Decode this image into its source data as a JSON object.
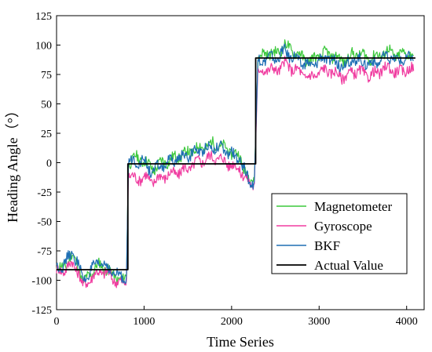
{
  "chart_data": {
    "type": "line",
    "xlabel": "Time Series",
    "ylabel": "Heading Angle（°）",
    "xlim": [
      0,
      4200
    ],
    "ylim": [
      -125,
      125
    ],
    "xticks": [
      0,
      1000,
      2000,
      3000,
      4000
    ],
    "yticks": [
      -125,
      -100,
      -75,
      -50,
      -25,
      0,
      25,
      50,
      75,
      100,
      125
    ],
    "grid": false,
    "legend_position": "bottom-right",
    "series": [
      {
        "name": "Magnetometer",
        "color": "#3cc83c",
        "x": [
          0,
          80,
          180,
          250,
          300,
          360,
          420,
          500,
          560,
          620,
          700,
          760,
          800,
          820,
          900,
          1000,
          1100,
          1200,
          1300,
          1400,
          1500,
          1600,
          1700,
          1800,
          1900,
          2000,
          2100,
          2200,
          2260,
          2300,
          2400,
          2500,
          2600,
          2700,
          2800,
          2900,
          3000,
          3100,
          3200,
          3300,
          3400,
          3500,
          3600,
          3700,
          3800,
          3900,
          4000,
          4080
        ],
        "y": [
          -92,
          -88,
          -80,
          -86,
          -104,
          -96,
          -92,
          -86,
          -90,
          -94,
          -98,
          -101,
          -96,
          0,
          4,
          2,
          -6,
          0,
          2,
          6,
          8,
          12,
          14,
          16,
          13,
          9,
          4,
          -15,
          -15,
          88,
          94,
          92,
          100,
          95,
          90,
          86,
          91,
          93,
          89,
          87,
          93,
          91,
          89,
          92,
          95,
          90,
          94,
          91
        ]
      },
      {
        "name": "Gyroscope",
        "color": "#f03ca0",
        "x": [
          0,
          80,
          180,
          250,
          300,
          360,
          420,
          500,
          560,
          620,
          700,
          760,
          800,
          820,
          900,
          1000,
          1100,
          1200,
          1300,
          1400,
          1500,
          1600,
          1700,
          1800,
          1900,
          2000,
          2100,
          2200,
          2260,
          2300,
          2400,
          2500,
          2600,
          2700,
          2800,
          2900,
          3000,
          3100,
          3200,
          3300,
          3400,
          3500,
          3600,
          3700,
          3800,
          3900,
          4000,
          4080
        ],
        "y": [
          -93,
          -91,
          -86,
          -92,
          -106,
          -100,
          -97,
          -92,
          -94,
          -97,
          -101,
          -104,
          -99,
          -10,
          -14,
          -12,
          -16,
          -12,
          -10,
          -8,
          -5,
          0,
          3,
          5,
          2,
          -2,
          -6,
          -18,
          -18,
          76,
          80,
          78,
          84,
          80,
          76,
          72,
          77,
          79,
          75,
          73,
          78,
          76,
          74,
          78,
          81,
          76,
          80,
          78
        ]
      },
      {
        "name": "BKF",
        "color": "#1e6eb4",
        "x": [
          0,
          80,
          180,
          250,
          300,
          360,
          420,
          500,
          560,
          620,
          700,
          760,
          800,
          820,
          900,
          1000,
          1100,
          1200,
          1300,
          1400,
          1500,
          1600,
          1700,
          1800,
          1900,
          2000,
          2100,
          2200,
          2260,
          2300,
          2400,
          2500,
          2600,
          2700,
          2800,
          2900,
          3000,
          3100,
          3200,
          3300,
          3400,
          3500,
          3600,
          3700,
          3800,
          3900,
          4000,
          4080
        ],
        "y": [
          -90,
          -86,
          -78,
          -84,
          -102,
          -94,
          -90,
          -84,
          -88,
          -92,
          -96,
          -99,
          -94,
          -2,
          2,
          0,
          -8,
          -2,
          0,
          4,
          6,
          10,
          12,
          14,
          11,
          7,
          2,
          -16,
          -16,
          84,
          90,
          88,
          95,
          90,
          85,
          82,
          87,
          89,
          85,
          83,
          88,
          86,
          84,
          87,
          90,
          86,
          89,
          87
        ]
      },
      {
        "name": "Actual Value",
        "color": "#000000",
        "x": [
          0,
          815,
          815,
          2275,
          2275,
          4100
        ],
        "y": [
          -91,
          -91,
          -1,
          -1,
          89,
          89
        ]
      }
    ]
  }
}
